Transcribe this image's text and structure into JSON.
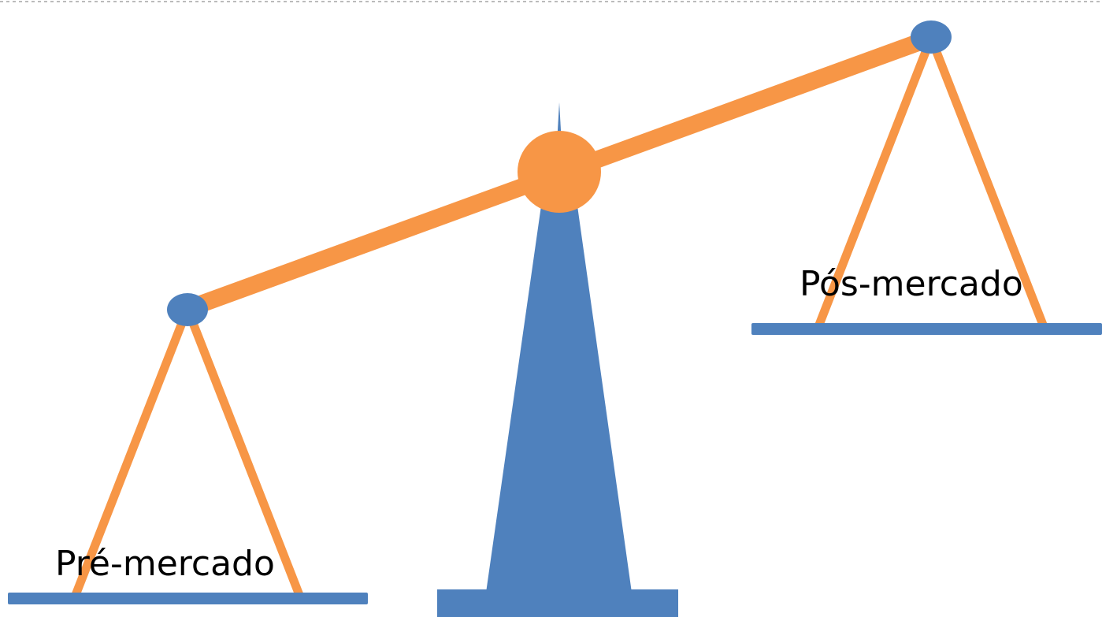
{
  "labels": {
    "left": "Pré-mercado",
    "right": "Pós-mercado"
  }
}
